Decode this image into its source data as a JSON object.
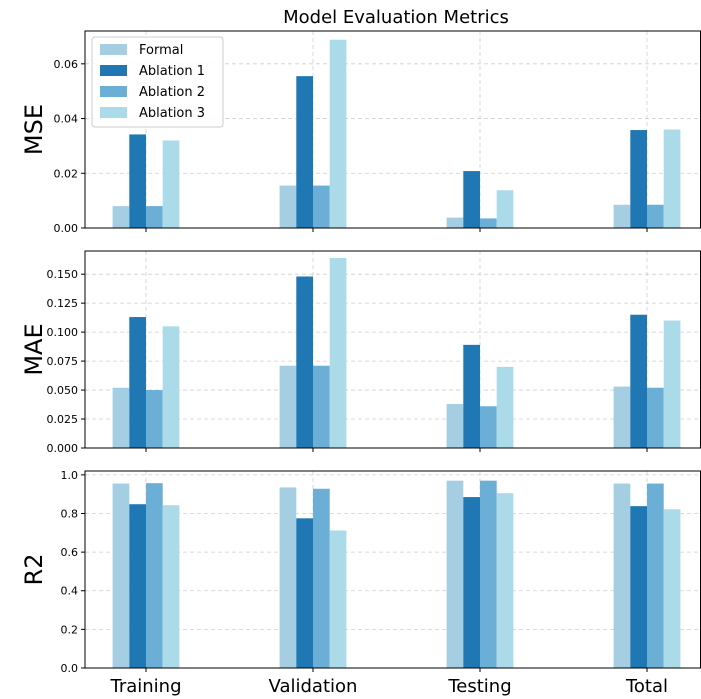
{
  "chart_data": {
    "type": "bar",
    "title": "Model Evaluation Metrics",
    "categories": [
      "Training",
      "Validation",
      "Testing",
      "Total"
    ],
    "legend": {
      "placement": "top-left",
      "entries": [
        "Formal",
        "Ablation 1",
        "Ablation 2",
        "Ablation 3"
      ]
    },
    "series_colors": [
      "#a6cee3",
      "#1f78b4",
      "#6baed6",
      "#abdbe9"
    ],
    "grid": true,
    "panels": [
      {
        "ylabel": "MSE",
        "ylim": [
          0,
          0.072
        ],
        "ticks": [
          0.0,
          0.02,
          0.04,
          0.06
        ],
        "tick_labels": [
          "0.00",
          "0.02",
          "0.04",
          "0.06"
        ],
        "series": [
          {
            "name": "Formal",
            "values": [
              0.008,
              0.0155,
              0.0038,
              0.0085
            ]
          },
          {
            "name": "Ablation 1",
            "values": [
              0.0342,
              0.0555,
              0.0208,
              0.0358
            ]
          },
          {
            "name": "Ablation 2",
            "values": [
              0.008,
              0.0155,
              0.0035,
              0.0085
            ]
          },
          {
            "name": "Ablation 3",
            "values": [
              0.032,
              0.0688,
              0.0138,
              0.036
            ]
          }
        ]
      },
      {
        "ylabel": "MAE",
        "ylim": [
          0,
          0.17
        ],
        "ticks": [
          0.0,
          0.025,
          0.05,
          0.075,
          0.1,
          0.125,
          0.15
        ],
        "tick_labels": [
          "0.000",
          "0.025",
          "0.050",
          "0.075",
          "0.100",
          "0.125",
          "0.150"
        ],
        "series": [
          {
            "name": "Formal",
            "values": [
              0.052,
              0.071,
              0.038,
              0.053
            ]
          },
          {
            "name": "Ablation 1",
            "values": [
              0.113,
              0.148,
              0.089,
              0.115
            ]
          },
          {
            "name": "Ablation 2",
            "values": [
              0.05,
              0.071,
              0.036,
              0.052
            ]
          },
          {
            "name": "Ablation 3",
            "values": [
              0.105,
              0.164,
              0.07,
              0.11
            ]
          }
        ]
      },
      {
        "ylabel": "R2",
        "ylim": [
          0,
          1.02
        ],
        "ticks": [
          0.0,
          0.2,
          0.4,
          0.6,
          0.8,
          1.0
        ],
        "tick_labels": [
          "0.0",
          "0.2",
          "0.4",
          "0.6",
          "0.8",
          "1.0"
        ],
        "series": [
          {
            "name": "Formal",
            "values": [
              0.955,
              0.935,
              0.97,
              0.955
            ]
          },
          {
            "name": "Ablation 1",
            "values": [
              0.848,
              0.775,
              0.885,
              0.838
            ]
          },
          {
            "name": "Ablation 2",
            "values": [
              0.957,
              0.928,
              0.97,
              0.955
            ]
          },
          {
            "name": "Ablation 3",
            "values": [
              0.843,
              0.712,
              0.905,
              0.822
            ]
          }
        ]
      }
    ]
  }
}
